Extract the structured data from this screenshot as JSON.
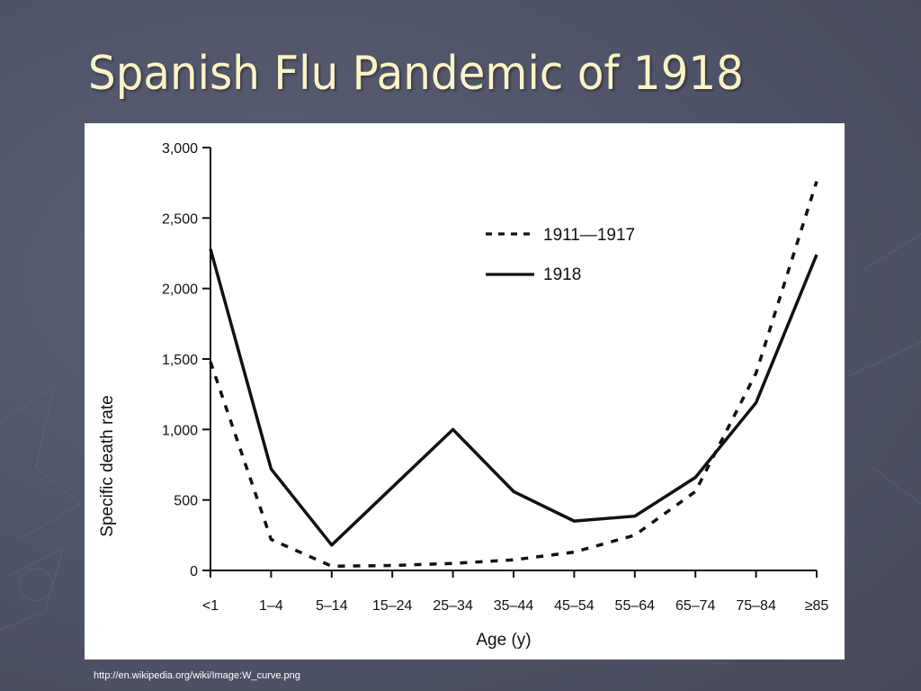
{
  "slide": {
    "title": "Spanish Flu Pandemic of 1918",
    "source": "http://en.wikipedia.org/wiki/Image:W_curve.png"
  },
  "colors": {
    "background": "#4f5367",
    "title": "#fbf3c6",
    "plot": "#111111"
  },
  "chart_data": {
    "type": "line",
    "categories": [
      "<1",
      "1–4",
      "5–14",
      "15–24",
      "25–34",
      "35–44",
      "45–54",
      "55–64",
      "65–74",
      "75–84",
      "≥85"
    ],
    "series": [
      {
        "name": "1911—1917",
        "style": "dashed",
        "values": [
          1480,
          220,
          30,
          35,
          50,
          75,
          130,
          250,
          560,
          1400,
          2760
        ]
      },
      {
        "name": "1918",
        "style": "solid",
        "values": [
          2280,
          720,
          180,
          590,
          1000,
          560,
          350,
          385,
          660,
          1190,
          2240
        ]
      }
    ],
    "xlabel": "Age (y)",
    "ylabel": "Specific death rate",
    "ylim": [
      0,
      3000
    ],
    "yticks": [
      0,
      500,
      1000,
      1500,
      2000,
      2500,
      3000
    ],
    "ytick_labels": [
      "0",
      "500",
      "1,000",
      "1,500",
      "2,000",
      "2,500",
      "3,000"
    ],
    "grid": false,
    "legend": "top-right"
  }
}
